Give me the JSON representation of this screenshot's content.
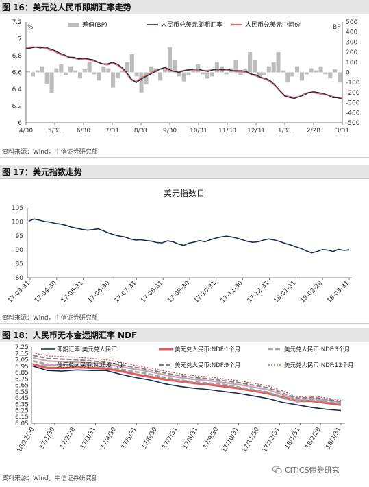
{
  "charts": [
    {
      "title": "图 16：美元兑人民币即期汇率走势",
      "source": "资料来源：Wind，中信证券研究部"
    },
    {
      "title": "图 17：美元指数走势",
      "source": "资料来源：Wind，中信证券研究部"
    },
    {
      "title": "图 18：人民币无本金远期汇率 NDF",
      "source": "资料来源：Wind，中信证券研究部"
    }
  ],
  "watermark": "CITICS债券研究",
  "chart_data": [
    {
      "type": "line",
      "x_ticks": [
        "4/30",
        "5/31",
        "6/30",
        "7/31",
        "8/31",
        "9/30",
        "10/31",
        "11/30",
        "12/31",
        "1/31",
        "2/28",
        "3/31"
      ],
      "y_ticks": [
        "7.2",
        "7",
        "6.8",
        "6.6",
        "6.4",
        "6.2",
        "6"
      ],
      "ylim": [
        6,
        7.2
      ],
      "y_label_left": "%",
      "y2_ticks": [
        "500",
        "400",
        "300",
        "200",
        "100",
        "0",
        "-100",
        "-200",
        "-300",
        "-400",
        "-500"
      ],
      "y2lim": [
        -500,
        500
      ],
      "y2_label": "BP",
      "legend": [
        "差值(BP)",
        "人民币兑美元即期汇率",
        "人民币兑美元中间价"
      ],
      "spot": [
        6.88,
        6.89,
        6.9,
        6.89,
        6.9,
        6.88,
        6.86,
        6.83,
        6.81,
        6.78,
        6.78,
        6.76,
        6.77,
        6.76,
        6.75,
        6.72,
        6.7,
        6.7,
        6.72,
        6.7,
        6.66,
        6.6,
        6.52,
        6.48,
        6.52,
        6.55,
        6.58,
        6.61,
        6.64,
        6.66,
        6.63,
        6.61,
        6.6,
        6.62,
        6.63,
        6.64,
        6.64,
        6.62,
        6.61,
        6.63,
        6.64,
        6.63,
        6.64,
        6.62,
        6.62,
        6.62,
        6.61,
        6.58,
        6.57,
        6.54,
        6.53,
        6.5,
        6.45,
        6.38,
        6.32,
        6.3,
        6.29,
        6.31,
        6.33,
        6.36,
        6.37,
        6.36,
        6.35,
        6.33,
        6.3,
        6.3,
        6.28
      ],
      "mid": [
        6.89,
        6.9,
        6.9,
        6.9,
        6.89,
        6.87,
        6.85,
        6.82,
        6.8,
        6.78,
        6.77,
        6.76,
        6.76,
        6.75,
        6.74,
        6.72,
        6.7,
        6.69,
        6.71,
        6.69,
        6.65,
        6.59,
        6.51,
        6.49,
        6.53,
        6.56,
        6.59,
        6.62,
        6.64,
        6.65,
        6.62,
        6.61,
        6.61,
        6.62,
        6.63,
        6.63,
        6.63,
        6.62,
        6.62,
        6.63,
        6.63,
        6.63,
        6.63,
        6.62,
        6.61,
        6.61,
        6.6,
        6.58,
        6.56,
        6.54,
        6.52,
        6.49,
        6.44,
        6.38,
        6.32,
        6.31,
        6.3,
        6.31,
        6.34,
        6.36,
        6.36,
        6.35,
        6.34,
        6.33,
        6.31,
        6.3,
        6.29
      ],
      "diff": [
        10,
        -40,
        20,
        60,
        -120,
        -200,
        40,
        80,
        -30,
        60,
        20,
        -60,
        30,
        100,
        -20,
        -80,
        60,
        40,
        -150,
        -60,
        20,
        100,
        180,
        -40,
        -200,
        -120,
        60,
        40,
        -80,
        30,
        250,
        120,
        -40,
        -90,
        -30,
        20,
        80,
        -20,
        -60,
        -40,
        100,
        60,
        -20,
        40,
        120,
        -30,
        30,
        200,
        120,
        -50,
        -30,
        60,
        100,
        200,
        20,
        -100,
        -40,
        60,
        -80,
        -20,
        40,
        20,
        60,
        -20,
        -60,
        30,
        -100
      ]
    },
    {
      "type": "line",
      "title": "美元指数日",
      "x_ticks": [
        "17-03-31",
        "17-04-30",
        "17-05-31",
        "17-06-30",
        "17-07-31",
        "17-08-31",
        "17-09-30",
        "17-10-31",
        "17-11-30",
        "17-12-31",
        "18-01-31",
        "18-02-28",
        "18-03-31"
      ],
      "y_ticks": [
        "105",
        "100",
        "95",
        "90",
        "85",
        "80"
      ],
      "ylim": [
        80,
        105
      ],
      "values": [
        100.3,
        101.0,
        100.6,
        100.1,
        99.9,
        99.4,
        99.2,
        98.7,
        98.1,
        97.7,
        97.3,
        97.0,
        97.2,
        97.5,
        96.8,
        96.0,
        95.4,
        94.9,
        94.6,
        93.9,
        93.5,
        93.6,
        93.3,
        93.1,
        92.6,
        92.5,
        93.2,
        92.9,
        92.1,
        91.6,
        92.4,
        92.8,
        93.3,
        92.9,
        93.6,
        94.2,
        94.6,
        94.9,
        94.6,
        94.2,
        93.6,
        93.0,
        92.7,
        92.9,
        93.5,
        93.9,
        93.5,
        93.0,
        92.3,
        91.8,
        91.1,
        90.5,
        89.6,
        88.9,
        89.4,
        90.1,
        89.9,
        89.4,
        90.2,
        89.8,
        90.0
      ]
    },
    {
      "type": "line",
      "x_ticks": [
        "16/12/30",
        "17/1/30",
        "17/2/28",
        "17/3/31",
        "17/4/30",
        "17/5/31",
        "17/6/30",
        "17/7/31",
        "17/8/31",
        "17/9/30",
        "17/10/31",
        "17/11/30",
        "17/12/31",
        "18/1/31",
        "18/2/28",
        "18/3/31"
      ],
      "y_ticks": [
        "7.25",
        "7.15",
        "7.05",
        "6.95",
        "6.85",
        "6.75",
        "6.65",
        "6.55",
        "6.45",
        "6.35",
        "6.25",
        "6.15",
        "6.05"
      ],
      "ylim": [
        6.05,
        7.25
      ],
      "legend": [
        "即期汇率:美元兑人民币",
        "美元兑人民币:NDF:1个月",
        "美元兑人民币:NDF:3个月",
        "美元兑人民币:NDF:6个月",
        "美元兑人民币:NDF:9个月",
        "美元兑人民币:NDF:12个月"
      ],
      "series": [
        {
          "name": "即期汇率:美元兑人民币",
          "values": [
            6.95,
            6.88,
            6.87,
            6.89,
            6.88,
            6.88,
            6.82,
            6.77,
            6.73,
            6.67,
            6.63,
            6.6,
            6.58,
            6.55,
            6.52,
            6.48,
            6.44,
            6.38,
            6.34,
            6.3,
            6.27,
            6.25
          ]
        },
        {
          "name": "美元兑人民币:NDF:1个月",
          "values": [
            6.98,
            6.92,
            6.92,
            6.93,
            6.92,
            6.91,
            6.87,
            6.82,
            6.78,
            6.74,
            6.71,
            6.68,
            6.66,
            6.63,
            6.6,
            6.56,
            6.52,
            6.46,
            6.4,
            6.4,
            6.37,
            6.34
          ]
        },
        {
          "name": "美元兑人民币:NDF:3个月",
          "values": [
            7.03,
            6.98,
            6.97,
            6.97,
            6.96,
            6.94,
            6.9,
            6.86,
            6.82,
            6.77,
            6.73,
            6.7,
            6.68,
            6.66,
            6.62,
            6.58,
            6.54,
            6.45,
            6.39,
            6.42,
            6.39,
            6.36
          ]
        },
        {
          "name": "美元兑人民币:NDF:6个月",
          "values": [
            7.08,
            7.03,
            7.02,
            7.01,
            7.0,
            6.98,
            6.94,
            6.9,
            6.86,
            6.81,
            6.77,
            6.74,
            6.72,
            6.69,
            6.66,
            6.62,
            6.58,
            6.5,
            6.42,
            6.44,
            6.41,
            6.38
          ]
        },
        {
          "name": "美元兑人民币:NDF:9个月",
          "values": [
            7.12,
            7.07,
            7.06,
            7.05,
            7.03,
            7.01,
            6.97,
            6.93,
            6.89,
            6.84,
            6.8,
            6.77,
            6.75,
            6.72,
            6.69,
            6.65,
            6.61,
            6.53,
            6.44,
            6.46,
            6.43,
            6.39
          ]
        },
        {
          "name": "美元兑人民币:NDF:12个月",
          "values": [
            7.16,
            7.11,
            7.1,
            7.09,
            7.07,
            7.05,
            7.01,
            6.96,
            6.92,
            6.87,
            6.83,
            6.8,
            6.78,
            6.75,
            6.72,
            6.68,
            6.64,
            6.56,
            6.46,
            6.48,
            6.45,
            6.41
          ]
        }
      ]
    }
  ],
  "styles": {
    "spot_color": "#1a2b4a",
    "mid_color": "#e06a6a",
    "diff_color": "#bdbdbd",
    "usd_index_color": "#1a2b4a",
    "ndf_colors": [
      "#1a2b4a",
      "#e05c5c",
      "#9fa3ad",
      "#c9a3aa",
      "#7d8290",
      "#c0392b"
    ],
    "ndf_dash": [
      "none",
      "none",
      "7 3",
      "none",
      "7 3",
      "2 2"
    ],
    "ndf_width": [
      1.6,
      3.2,
      2.6,
      2.2,
      2.0,
      1.2
    ]
  }
}
